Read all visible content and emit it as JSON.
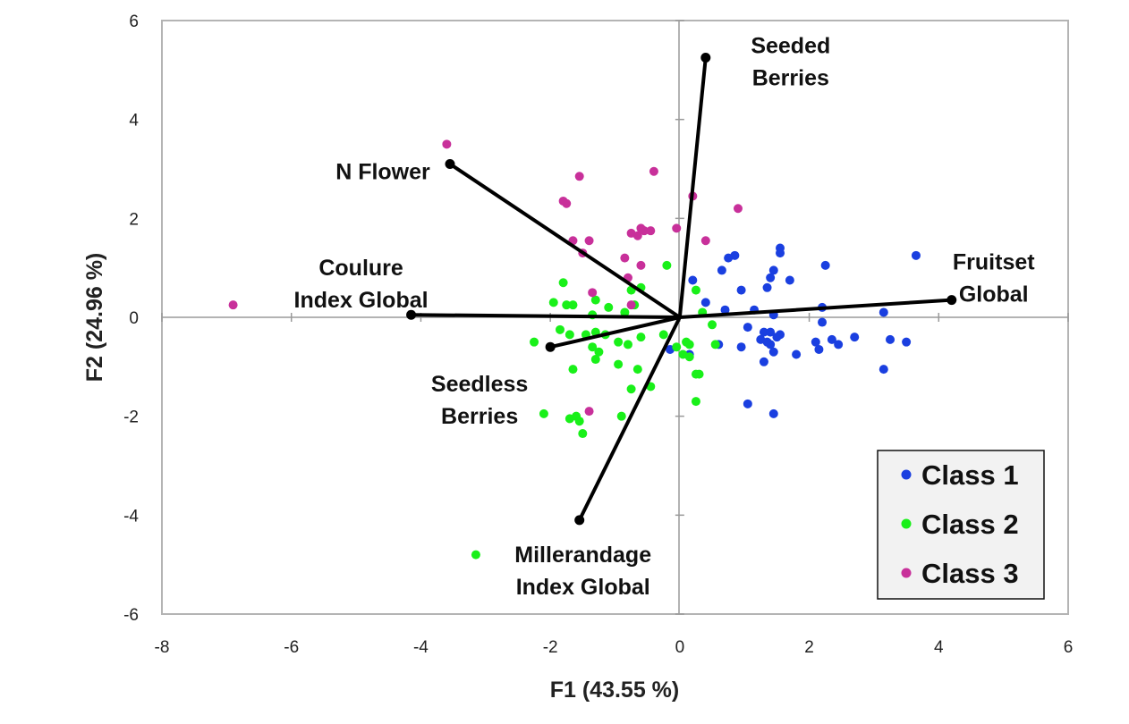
{
  "chart_data": {
    "type": "scatter",
    "subtype": "pca-biplot",
    "xlabel": "F1 (43.55 %)",
    "ylabel": "F2 (24.96 %)",
    "xlim": [
      -8,
      6
    ],
    "ylim": [
      -6,
      6
    ],
    "xticks": [
      -8,
      -6,
      -4,
      -2,
      0,
      2,
      4,
      6
    ],
    "yticks": [
      -6,
      -4,
      -2,
      0,
      2,
      4,
      6
    ],
    "grid": false,
    "legend_position": "bottom-right",
    "series": [
      {
        "name": "Class 1",
        "color": "#1a3fe0",
        "points": [
          [
            3.65,
            1.25
          ],
          [
            2.25,
            1.05
          ],
          [
            1.55,
            1.4
          ],
          [
            1.55,
            1.3
          ],
          [
            1.45,
            0.95
          ],
          [
            1.4,
            0.8
          ],
          [
            1.35,
            0.6
          ],
          [
            1.7,
            0.75
          ],
          [
            0.85,
            1.25
          ],
          [
            0.75,
            1.2
          ],
          [
            0.65,
            0.95
          ],
          [
            0.95,
            0.55
          ],
          [
            0.4,
            0.3
          ],
          [
            0.7,
            0.15
          ],
          [
            1.15,
            0.15
          ],
          [
            1.45,
            0.05
          ],
          [
            0.2,
            0.75
          ],
          [
            2.2,
            0.2
          ],
          [
            2.2,
            -0.1
          ],
          [
            2.1,
            -0.5
          ],
          [
            2.15,
            -0.65
          ],
          [
            2.35,
            -0.45
          ],
          [
            2.45,
            -0.55
          ],
          [
            2.7,
            -0.4
          ],
          [
            3.15,
            0.1
          ],
          [
            3.25,
            -0.45
          ],
          [
            3.5,
            -0.5
          ],
          [
            3.15,
            -1.05
          ],
          [
            1.55,
            -0.35
          ],
          [
            1.5,
            -0.4
          ],
          [
            1.4,
            -0.55
          ],
          [
            1.3,
            -0.3
          ],
          [
            1.25,
            -0.45
          ],
          [
            1.3,
            -0.9
          ],
          [
            1.05,
            -0.2
          ],
          [
            0.95,
            -0.6
          ],
          [
            0.6,
            -0.55
          ],
          [
            1.8,
            -0.75
          ],
          [
            1.35,
            -0.5
          ],
          [
            1.45,
            -0.7
          ],
          [
            1.05,
            -1.75
          ],
          [
            1.45,
            -1.95
          ],
          [
            0.15,
            -0.75
          ],
          [
            -0.15,
            -0.65
          ],
          [
            1.4,
            -0.3
          ]
        ]
      },
      {
        "name": "Class 2",
        "color": "#19f019",
        "points": [
          [
            -0.2,
            1.05
          ],
          [
            -0.6,
            0.6
          ],
          [
            -0.75,
            0.55
          ],
          [
            -1.8,
            0.7
          ],
          [
            -1.95,
            0.3
          ],
          [
            -1.75,
            0.25
          ],
          [
            -1.65,
            0.25
          ],
          [
            -1.3,
            0.35
          ],
          [
            -1.35,
            0.05
          ],
          [
            -1.1,
            0.2
          ],
          [
            -0.85,
            0.1
          ],
          [
            -0.7,
            0.25
          ],
          [
            -1.85,
            -0.25
          ],
          [
            -1.7,
            -0.35
          ],
          [
            -1.45,
            -0.35
          ],
          [
            -1.3,
            -0.3
          ],
          [
            -1.15,
            -0.35
          ],
          [
            -1.35,
            -0.6
          ],
          [
            -1.25,
            -0.7
          ],
          [
            -1.3,
            -0.85
          ],
          [
            -0.95,
            -0.5
          ],
          [
            -0.8,
            -0.55
          ],
          [
            -0.6,
            -0.4
          ],
          [
            -0.25,
            -0.35
          ],
          [
            -0.05,
            -0.6
          ],
          [
            -2.25,
            -0.5
          ],
          [
            -1.65,
            -1.05
          ],
          [
            -0.95,
            -0.95
          ],
          [
            -0.65,
            -1.05
          ],
          [
            -0.45,
            -1.4
          ],
          [
            -0.75,
            -1.45
          ],
          [
            -2.1,
            -1.95
          ],
          [
            -1.7,
            -2.05
          ],
          [
            -1.6,
            -2.0
          ],
          [
            -1.55,
            -2.1
          ],
          [
            -0.9,
            -2.0
          ],
          [
            -1.5,
            -2.35
          ],
          [
            0.1,
            -0.5
          ],
          [
            0.15,
            -0.55
          ],
          [
            0.05,
            -0.75
          ],
          [
            0.15,
            -0.8
          ],
          [
            0.3,
            -1.15
          ],
          [
            0.25,
            -1.15
          ],
          [
            0.25,
            -1.7
          ],
          [
            0.55,
            -0.55
          ],
          [
            0.5,
            -0.15
          ],
          [
            0.35,
            0.1
          ],
          [
            0.25,
            0.55
          ],
          [
            -3.15,
            -4.8
          ]
        ]
      },
      {
        "name": "Class 3",
        "color": "#c8309a",
        "points": [
          [
            -3.6,
            3.5
          ],
          [
            -0.4,
            2.95
          ],
          [
            -1.55,
            2.85
          ],
          [
            -1.8,
            2.35
          ],
          [
            -1.75,
            2.3
          ],
          [
            0.9,
            2.2
          ],
          [
            0.2,
            2.45
          ],
          [
            -0.6,
            1.8
          ],
          [
            -0.55,
            1.75
          ],
          [
            -0.45,
            1.75
          ],
          [
            -0.75,
            1.7
          ],
          [
            -0.65,
            1.65
          ],
          [
            -0.05,
            1.8
          ],
          [
            -1.65,
            1.55
          ],
          [
            -1.4,
            1.55
          ],
          [
            0.4,
            1.55
          ],
          [
            -1.5,
            1.3
          ],
          [
            -0.85,
            1.2
          ],
          [
            -0.6,
            1.05
          ],
          [
            -0.8,
            0.8
          ],
          [
            -1.35,
            0.5
          ],
          [
            -0.75,
            0.25
          ],
          [
            -6.9,
            0.25
          ],
          [
            -1.4,
            -1.9
          ]
        ]
      }
    ],
    "vectors": [
      {
        "name": "Seeded Berries",
        "label_lines": [
          "Seeded",
          "Berries"
        ],
        "x": 0.4,
        "y": 5.25
      },
      {
        "name": "N Flower",
        "label_lines": [
          "N Flower"
        ],
        "x": -3.55,
        "y": 3.1
      },
      {
        "name": "Coulure Index Global",
        "label_lines": [
          "Coulure",
          "Index Global"
        ],
        "x": -4.15,
        "y": 0.05
      },
      {
        "name": "Fruitset Global",
        "label_lines": [
          "Fruitset",
          "Global"
        ],
        "x": 4.2,
        "y": 0.35
      },
      {
        "name": "Seedless Berries",
        "label_lines": [
          "Seedless",
          "Berries"
        ],
        "x": -2.0,
        "y": -0.6
      },
      {
        "name": "Millerandage Index Global",
        "label_lines": [
          "Millerandage",
          "Index Global"
        ],
        "x": -1.55,
        "y": -4.1
      }
    ],
    "legend": [
      "Class 1",
      "Class 2",
      "Class 3"
    ]
  }
}
